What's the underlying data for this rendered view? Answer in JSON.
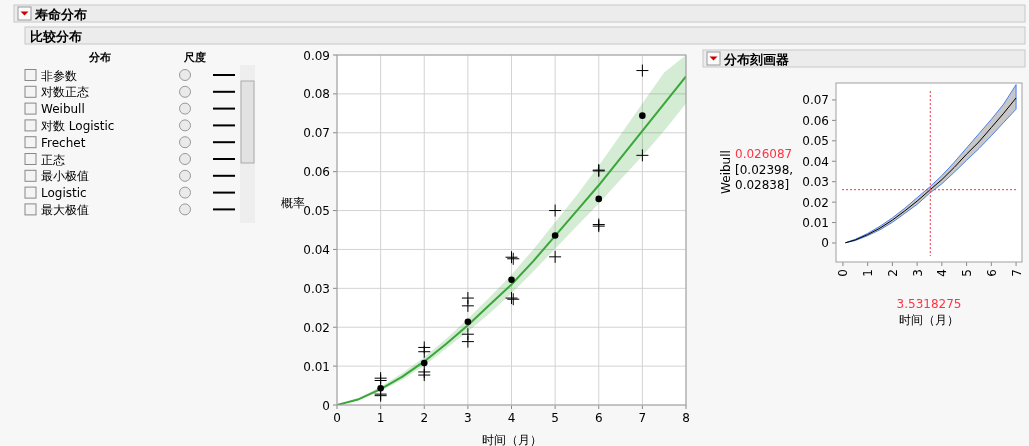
{
  "chart_data": [
    {
      "type": "other",
      "title": "寿命分布",
      "subtitle": "比较分布",
      "annotations": [
        "分布",
        "尺度",
        "非参数",
        "对数正态",
        "Weibull",
        "对数 Logistic",
        "Frechet",
        "正态",
        "最小极值",
        "Logistic",
        "最大极值"
      ]
    },
    {
      "type": "scatter",
      "xlabel": "时间（月）",
      "ylabel": "概率",
      "xlim": [
        0,
        8
      ],
      "ylim": [
        0,
        0.09
      ],
      "xticks": [
        0,
        1,
        2,
        3,
        4,
        5,
        6,
        7,
        8
      ],
      "yticks": [
        0,
        0.01,
        0.02,
        0.03,
        0.04,
        0.05,
        0.06,
        0.07,
        0.08,
        0.09
      ],
      "grid": true,
      "series": [
        {
          "type": "line",
          "color": "#3aa63a",
          "marker": "none",
          "x": [
            0,
            0.5,
            1,
            1.5,
            2,
            2.5,
            3,
            3.5,
            4,
            4.5,
            5,
            5.5,
            6,
            6.5,
            7,
            7.5,
            8
          ],
          "values": [
            0,
            0.0015,
            0.0041,
            0.0073,
            0.0112,
            0.0157,
            0.0205,
            0.0258,
            0.031,
            0.037,
            0.0435,
            0.05,
            0.0565,
            0.0635,
            0.0705,
            0.0775,
            0.0845
          ],
          "lower": [
            0,
            0.0012,
            0.0036,
            0.0065,
            0.0101,
            0.0145,
            0.0189,
            0.0236,
            0.0287,
            0.0343,
            0.0402,
            0.046,
            0.0518,
            0.058,
            0.064,
            0.0705,
            0.0775
          ],
          "upper": [
            0,
            0.0018,
            0.0047,
            0.0082,
            0.0123,
            0.017,
            0.0222,
            0.0277,
            0.0335,
            0.04,
            0.047,
            0.054,
            0.0615,
            0.0695,
            0.0775,
            0.0855,
            0.09
          ]
        },
        {
          "type": "scatter",
          "color": "#000000",
          "marker": "circle",
          "x": [
            1,
            2,
            3,
            4,
            5,
            6,
            7
          ],
          "values": [
            0.0043,
            0.0108,
            0.0214,
            0.0322,
            0.0436,
            0.053,
            0.0744
          ]
        },
        {
          "type": "scatter",
          "color": "#000000",
          "marker": "cross",
          "x": [
            1,
            1,
            1,
            1,
            2,
            2,
            2,
            2,
            3,
            3,
            3,
            3,
            4,
            4.04,
            4,
            4.04,
            5,
            5,
            6,
            6,
            6,
            6,
            7,
            7
          ],
          "values": [
            0.0069,
            0.0063,
            0.0028,
            0.0024,
            0.0148,
            0.0137,
            0.0085,
            0.0077,
            0.0275,
            0.0255,
            0.0182,
            0.0163,
            0.038,
            0.0376,
            0.0275,
            0.0272,
            0.05,
            0.0381,
            0.0604,
            0.0602,
            0.0464,
            0.046,
            0.086,
            0.0642
          ]
        }
      ]
    },
    {
      "type": "line",
      "title": "分布刻画器",
      "xlabel": "时间（月）",
      "ylabel": "Weibull",
      "xlim": [
        -0.28,
        7.24
      ],
      "ylim": [
        -0.0093,
        0.0783
      ],
      "xticks": [
        0,
        1,
        2,
        3,
        4,
        5,
        6,
        7
      ],
      "yticks": [
        0,
        0.01,
        0.02,
        0.03,
        0.04,
        0.05,
        0.06,
        0.07
      ],
      "grid": false,
      "series": [
        {
          "color": "#000000",
          "x": [
            0.1,
            0.5,
            1,
            1.5,
            2,
            2.5,
            3,
            3.5,
            4,
            4.5,
            5,
            5.5,
            6,
            6.5,
            7
          ],
          "values": [
            0.0001,
            0.0015,
            0.0041,
            0.0073,
            0.0112,
            0.0157,
            0.0205,
            0.0258,
            0.031,
            0.037,
            0.0435,
            0.0495,
            0.0565,
            0.0635,
            0.071
          ],
          "lower": [
            0.0001,
            0.0012,
            0.0036,
            0.0065,
            0.0101,
            0.0145,
            0.0189,
            0.0243,
            0.029,
            0.0346,
            0.0405,
            0.0462,
            0.0525,
            0.059,
            0.0655
          ],
          "upper": [
            0.0001,
            0.0018,
            0.0047,
            0.0082,
            0.0123,
            0.017,
            0.0222,
            0.0273,
            0.033,
            0.0395,
            0.0465,
            0.0535,
            0.0605,
            0.068,
            0.0775
          ]
        }
      ],
      "ref_lines": [
        {
          "axis": "x",
          "value": 3.5318275,
          "label": "3.5318275",
          "color": "#ff3344",
          "line_style": "dotted"
        },
        {
          "axis": "y",
          "value": 0.026087,
          "label": "0.026087",
          "color": "#ff3344",
          "line_style": "dotted"
        }
      ],
      "annotations": [
        "[0.02398, 0.02838]"
      ]
    }
  ]
}
